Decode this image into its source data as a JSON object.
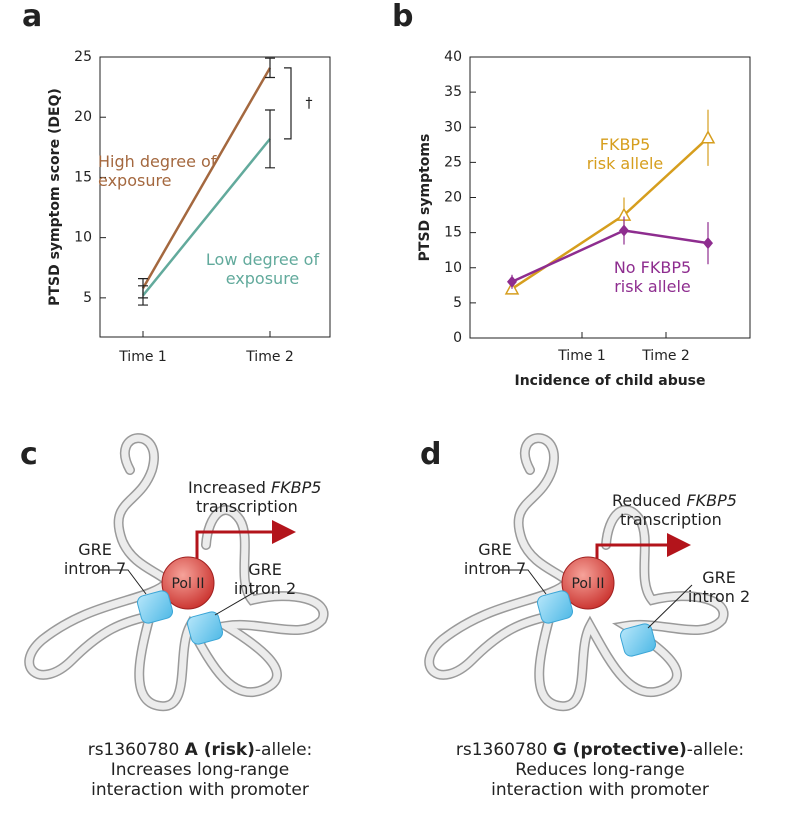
{
  "chart_data": [
    {
      "type": "line",
      "panel": "a",
      "ylabel": "PTSD symptom score (DEQ)",
      "categories": [
        "Time 1",
        "Time 2"
      ],
      "series": [
        {
          "name": "High degree of exposure",
          "color": "#a4683f",
          "values": [
            5.8,
            24.1
          ],
          "errors": [
            0.8,
            0.8
          ]
        },
        {
          "name": "Low degree of exposure",
          "color": "#62aa9c",
          "values": [
            5.2,
            18.2
          ],
          "errors": [
            0.8,
            2.4
          ]
        }
      ],
      "ylim": [
        1.75,
        25
      ],
      "yticks": [
        5,
        10,
        15,
        20,
        25
      ],
      "annotation": "†"
    },
    {
      "type": "line",
      "panel": "b",
      "ylabel": "PTSD symptoms",
      "xlabel": "Incidence of child abuse",
      "x": [
        0.6,
        2.2,
        3.4
      ],
      "series": [
        {
          "name": "FKBP5 risk allele",
          "color": "#d69e1e",
          "marker": "triangle",
          "values": [
            7,
            17.5,
            28.5
          ],
          "errors": [
            0.5,
            2.5,
            4
          ]
        },
        {
          "name": "No FKBP5 risk allele",
          "color": "#8e2d8f",
          "marker": "diamond",
          "values": [
            8,
            15.3,
            13.5
          ],
          "errors": [
            1,
            2,
            3
          ]
        }
      ],
      "xlim": [
        0,
        4
      ],
      "xticks": [
        {
          "value": 1.6,
          "label": "Time 1"
        },
        {
          "value": 2.8,
          "label": "Time 2"
        }
      ],
      "ylim": [
        0,
        40
      ],
      "yticks": [
        0,
        5,
        10,
        15,
        20,
        25,
        30,
        35,
        40
      ]
    }
  ],
  "diagrams": [
    {
      "panel": "c",
      "change": "Increased",
      "gene": "FKBP5",
      "process": "transcription",
      "polymerase": "Pol II",
      "gre_left": [
        "GRE",
        "intron 7"
      ],
      "gre_right": [
        "GRE",
        "intron 2"
      ],
      "caption": {
        "snp": "rs1360780",
        "allele": "A (risk)",
        "suffix": "-allele:",
        "lines": [
          "Increases long-range",
          "interaction with promoter"
        ]
      }
    },
    {
      "panel": "d",
      "change": "Reduced",
      "gene": "FKBP5",
      "process": "transcription",
      "polymerase": "Pol II",
      "gre_left": [
        "GRE",
        "intron 7"
      ],
      "gre_right": [
        "GRE",
        "intron 2"
      ],
      "caption": {
        "snp": "rs1360780",
        "allele": "G (protective)",
        "suffix": "-allele:",
        "lines": [
          "Reduces long-range",
          "interaction with promoter"
        ]
      }
    }
  ]
}
